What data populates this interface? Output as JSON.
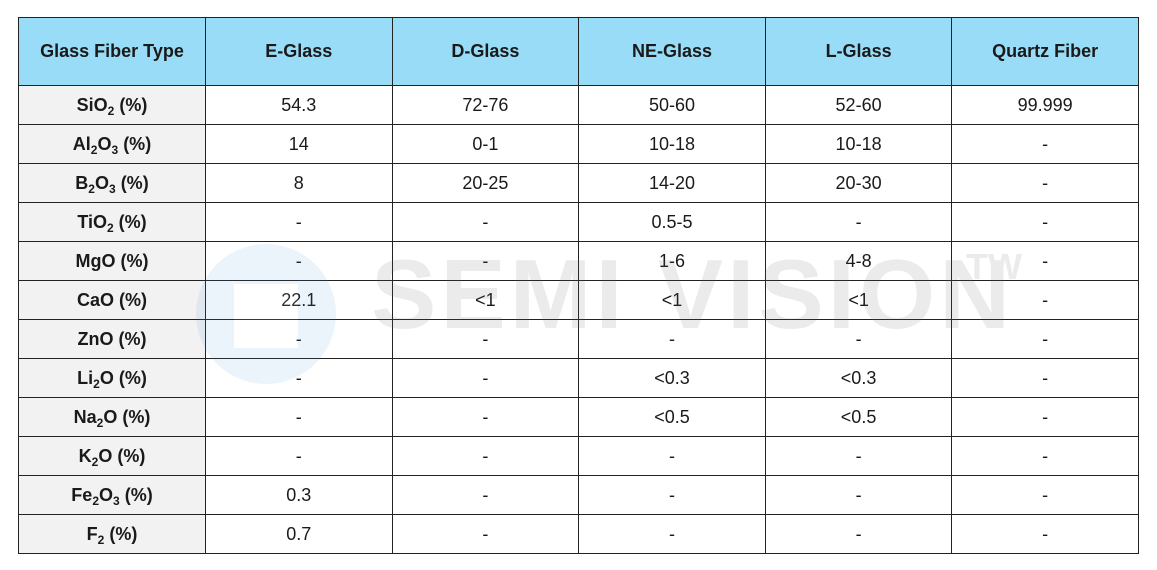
{
  "header": [
    "Glass Fiber Type",
    "E-Glass",
    "D-Glass",
    "NE-Glass",
    "L-Glass",
    "Quartz Fiber"
  ],
  "rows": [
    {
      "label": {
        "base": "SiO",
        "sub": "2",
        "rest": " (%)"
      },
      "values": [
        "54.3",
        "72-76",
        "50-60",
        "52-60",
        "99.999"
      ]
    },
    {
      "label": {
        "base": "Al",
        "sub": "2",
        "mid": "O",
        "sub2": "3",
        "rest": " (%)"
      },
      "values": [
        "14",
        "0-1",
        "10-18",
        "10-18",
        "-"
      ]
    },
    {
      "label": {
        "base": "B",
        "sub": "2",
        "mid": "O",
        "sub2": "3",
        "rest": " (%)"
      },
      "values": [
        "8",
        "20-25",
        "14-20",
        "20-30",
        "-"
      ]
    },
    {
      "label": {
        "base": "TiO",
        "sub": "2",
        "rest": " (%)"
      },
      "values": [
        "-",
        "-",
        "0.5-5",
        "-",
        "-"
      ]
    },
    {
      "label": {
        "base": "MgO",
        "rest": " (%)"
      },
      "values": [
        "-",
        "-",
        "1-6",
        "4-8",
        "-"
      ]
    },
    {
      "label": {
        "base": "CaO",
        "rest": " (%)"
      },
      "values": [
        "22.1",
        "<1",
        "<1",
        "<1",
        "-"
      ]
    },
    {
      "label": {
        "base": "ZnO",
        "rest": " (%)"
      },
      "values": [
        "-",
        "-",
        "-",
        "-",
        "-"
      ]
    },
    {
      "label": {
        "base": "Li",
        "sub": "2",
        "mid": "O",
        "rest": " (%)"
      },
      "values": [
        "-",
        "-",
        "<0.3",
        "<0.3",
        "-"
      ]
    },
    {
      "label": {
        "base": "Na",
        "sub": "2",
        "mid": "O",
        "rest": " (%)"
      },
      "values": [
        "-",
        "-",
        "<0.5",
        "<0.5",
        "-"
      ]
    },
    {
      "label": {
        "base": "K",
        "sub": "2",
        "mid": "O",
        "rest": " (%)"
      },
      "values": [
        "-",
        "-",
        "-",
        "-",
        "-"
      ]
    },
    {
      "label": {
        "base": "Fe",
        "sub": "2",
        "mid": "O",
        "sub2": "3",
        "rest": " (%)"
      },
      "values": [
        "0.3",
        "-",
        "-",
        "-",
        "-"
      ]
    },
    {
      "label": {
        "base": "F",
        "sub": "2",
        "rest": " (%)"
      },
      "values": [
        "0.7",
        "-",
        "-",
        "-",
        "-"
      ]
    }
  ],
  "watermark": {
    "text": "SEMI VISION",
    "mark": "TW"
  },
  "colors": {
    "header_bg": "#99dcf7",
    "label_bg": "#f2f2f2",
    "border": "#222222"
  }
}
